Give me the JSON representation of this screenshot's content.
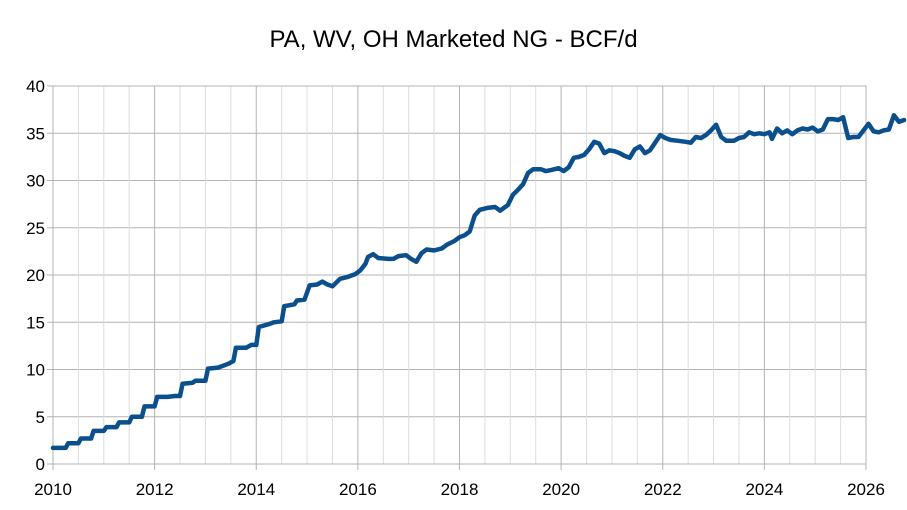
{
  "chart_data": {
    "type": "line",
    "title": "PA, WV, OH Marketed NG - BCF/d",
    "xlabel": "",
    "ylabel": "",
    "xlim": [
      2010,
      2026
    ],
    "ylim": [
      0,
      40
    ],
    "x_ticks": [
      2010,
      2012,
      2014,
      2016,
      2018,
      2020,
      2022,
      2024,
      2026
    ],
    "y_ticks": [
      0,
      5,
      10,
      15,
      20,
      25,
      30,
      35,
      40
    ],
    "grid": true,
    "legend": "none",
    "series": [
      {
        "color": "#0b4f8c",
        "points": [
          [
            2010.0,
            1.7
          ],
          [
            2010.25,
            1.7
          ],
          [
            2010.3,
            2.2
          ],
          [
            2010.5,
            2.2
          ],
          [
            2010.55,
            2.7
          ],
          [
            2010.75,
            2.7
          ],
          [
            2010.8,
            3.5
          ],
          [
            2011.0,
            3.5
          ],
          [
            2011.05,
            3.9
          ],
          [
            2011.25,
            3.9
          ],
          [
            2011.3,
            4.4
          ],
          [
            2011.5,
            4.4
          ],
          [
            2011.55,
            5.0
          ],
          [
            2011.75,
            5.0
          ],
          [
            2011.8,
            6.1
          ],
          [
            2012.0,
            6.1
          ],
          [
            2012.05,
            7.1
          ],
          [
            2012.25,
            7.1
          ],
          [
            2012.4,
            7.2
          ],
          [
            2012.5,
            7.2
          ],
          [
            2012.55,
            8.5
          ],
          [
            2012.75,
            8.6
          ],
          [
            2012.8,
            8.8
          ],
          [
            2013.0,
            8.8
          ],
          [
            2013.05,
            10.1
          ],
          [
            2013.25,
            10.2
          ],
          [
            2013.45,
            10.6
          ],
          [
            2013.55,
            10.9
          ],
          [
            2013.6,
            12.3
          ],
          [
            2013.8,
            12.3
          ],
          [
            2013.9,
            12.6
          ],
          [
            2014.0,
            12.6
          ],
          [
            2014.05,
            14.5
          ],
          [
            2014.25,
            14.8
          ],
          [
            2014.35,
            15.0
          ],
          [
            2014.5,
            15.1
          ],
          [
            2014.55,
            16.7
          ],
          [
            2014.75,
            16.9
          ],
          [
            2014.8,
            17.3
          ],
          [
            2014.95,
            17.4
          ],
          [
            2015.05,
            18.9
          ],
          [
            2015.2,
            19.0
          ],
          [
            2015.3,
            19.3
          ],
          [
            2015.4,
            19.0
          ],
          [
            2015.5,
            18.8
          ],
          [
            2015.65,
            19.6
          ],
          [
            2015.8,
            19.8
          ],
          [
            2015.95,
            20.1
          ],
          [
            2016.05,
            20.5
          ],
          [
            2016.15,
            21.2
          ],
          [
            2016.2,
            21.9
          ],
          [
            2016.3,
            22.2
          ],
          [
            2016.4,
            21.8
          ],
          [
            2016.6,
            21.7
          ],
          [
            2016.7,
            21.7
          ],
          [
            2016.8,
            22.0
          ],
          [
            2016.95,
            22.1
          ],
          [
            2017.05,
            21.7
          ],
          [
            2017.15,
            21.4
          ],
          [
            2017.25,
            22.3
          ],
          [
            2017.35,
            22.7
          ],
          [
            2017.5,
            22.6
          ],
          [
            2017.65,
            22.8
          ],
          [
            2017.75,
            23.2
          ],
          [
            2017.9,
            23.6
          ],
          [
            2018.0,
            24.0
          ],
          [
            2018.1,
            24.2
          ],
          [
            2018.2,
            24.6
          ],
          [
            2018.3,
            26.3
          ],
          [
            2018.4,
            26.9
          ],
          [
            2018.55,
            27.1
          ],
          [
            2018.7,
            27.2
          ],
          [
            2018.8,
            26.8
          ],
          [
            2018.95,
            27.4
          ],
          [
            2019.05,
            28.5
          ],
          [
            2019.15,
            29.0
          ],
          [
            2019.25,
            29.6
          ],
          [
            2019.35,
            30.8
          ],
          [
            2019.45,
            31.2
          ],
          [
            2019.6,
            31.2
          ],
          [
            2019.7,
            31.0
          ],
          [
            2019.8,
            31.1
          ],
          [
            2019.95,
            31.3
          ],
          [
            2020.05,
            31.0
          ],
          [
            2020.15,
            31.4
          ],
          [
            2020.25,
            32.4
          ],
          [
            2020.35,
            32.5
          ],
          [
            2020.45,
            32.7
          ],
          [
            2020.55,
            33.3
          ],
          [
            2020.65,
            34.1
          ],
          [
            2020.75,
            33.9
          ],
          [
            2020.85,
            32.9
          ],
          [
            2020.95,
            33.2
          ],
          [
            2021.05,
            33.1
          ],
          [
            2021.15,
            32.9
          ],
          [
            2021.25,
            32.6
          ],
          [
            2021.35,
            32.4
          ],
          [
            2021.45,
            33.3
          ],
          [
            2021.55,
            33.6
          ],
          [
            2021.65,
            32.9
          ],
          [
            2021.75,
            33.2
          ],
          [
            2021.85,
            34.0
          ],
          [
            2021.95,
            34.8
          ],
          [
            2022.05,
            34.5
          ],
          [
            2022.15,
            34.3
          ],
          [
            2022.3,
            34.2
          ],
          [
            2022.45,
            34.1
          ],
          [
            2022.55,
            34.0
          ],
          [
            2022.65,
            34.6
          ],
          [
            2022.75,
            34.5
          ],
          [
            2022.85,
            34.8
          ],
          [
            2022.95,
            35.3
          ],
          [
            2023.05,
            35.9
          ],
          [
            2023.15,
            34.6
          ],
          [
            2023.25,
            34.2
          ],
          [
            2023.4,
            34.2
          ],
          [
            2023.5,
            34.5
          ],
          [
            2023.6,
            34.6
          ],
          [
            2023.7,
            35.1
          ],
          [
            2023.8,
            34.9
          ],
          [
            2023.9,
            35.0
          ],
          [
            2024.0,
            34.9
          ],
          [
            2024.1,
            35.1
          ],
          [
            2024.15,
            34.4
          ],
          [
            2024.25,
            35.5
          ],
          [
            2024.35,
            35.0
          ],
          [
            2024.45,
            35.3
          ],
          [
            2024.55,
            34.9
          ],
          [
            2024.65,
            35.3
          ],
          [
            2024.75,
            35.5
          ],
          [
            2024.85,
            35.4
          ],
          [
            2024.95,
            35.6
          ],
          [
            2025.05,
            35.2
          ],
          [
            2025.15,
            35.4
          ],
          [
            2025.25,
            36.5
          ],
          [
            2025.35,
            36.5
          ],
          [
            2025.45,
            36.4
          ],
          [
            2025.55,
            36.7
          ],
          [
            2025.65,
            34.5
          ],
          [
            2025.75,
            34.6
          ],
          [
            2025.85,
            34.6
          ],
          [
            2025.95,
            35.3
          ],
          [
            2026.05,
            36.0
          ],
          [
            2026.15,
            35.2
          ],
          [
            2026.25,
            35.1
          ],
          [
            2026.35,
            35.3
          ],
          [
            2026.45,
            35.4
          ],
          [
            2026.55,
            36.9
          ],
          [
            2026.65,
            36.2
          ],
          [
            2026.75,
            36.4
          ]
        ]
      }
    ]
  }
}
